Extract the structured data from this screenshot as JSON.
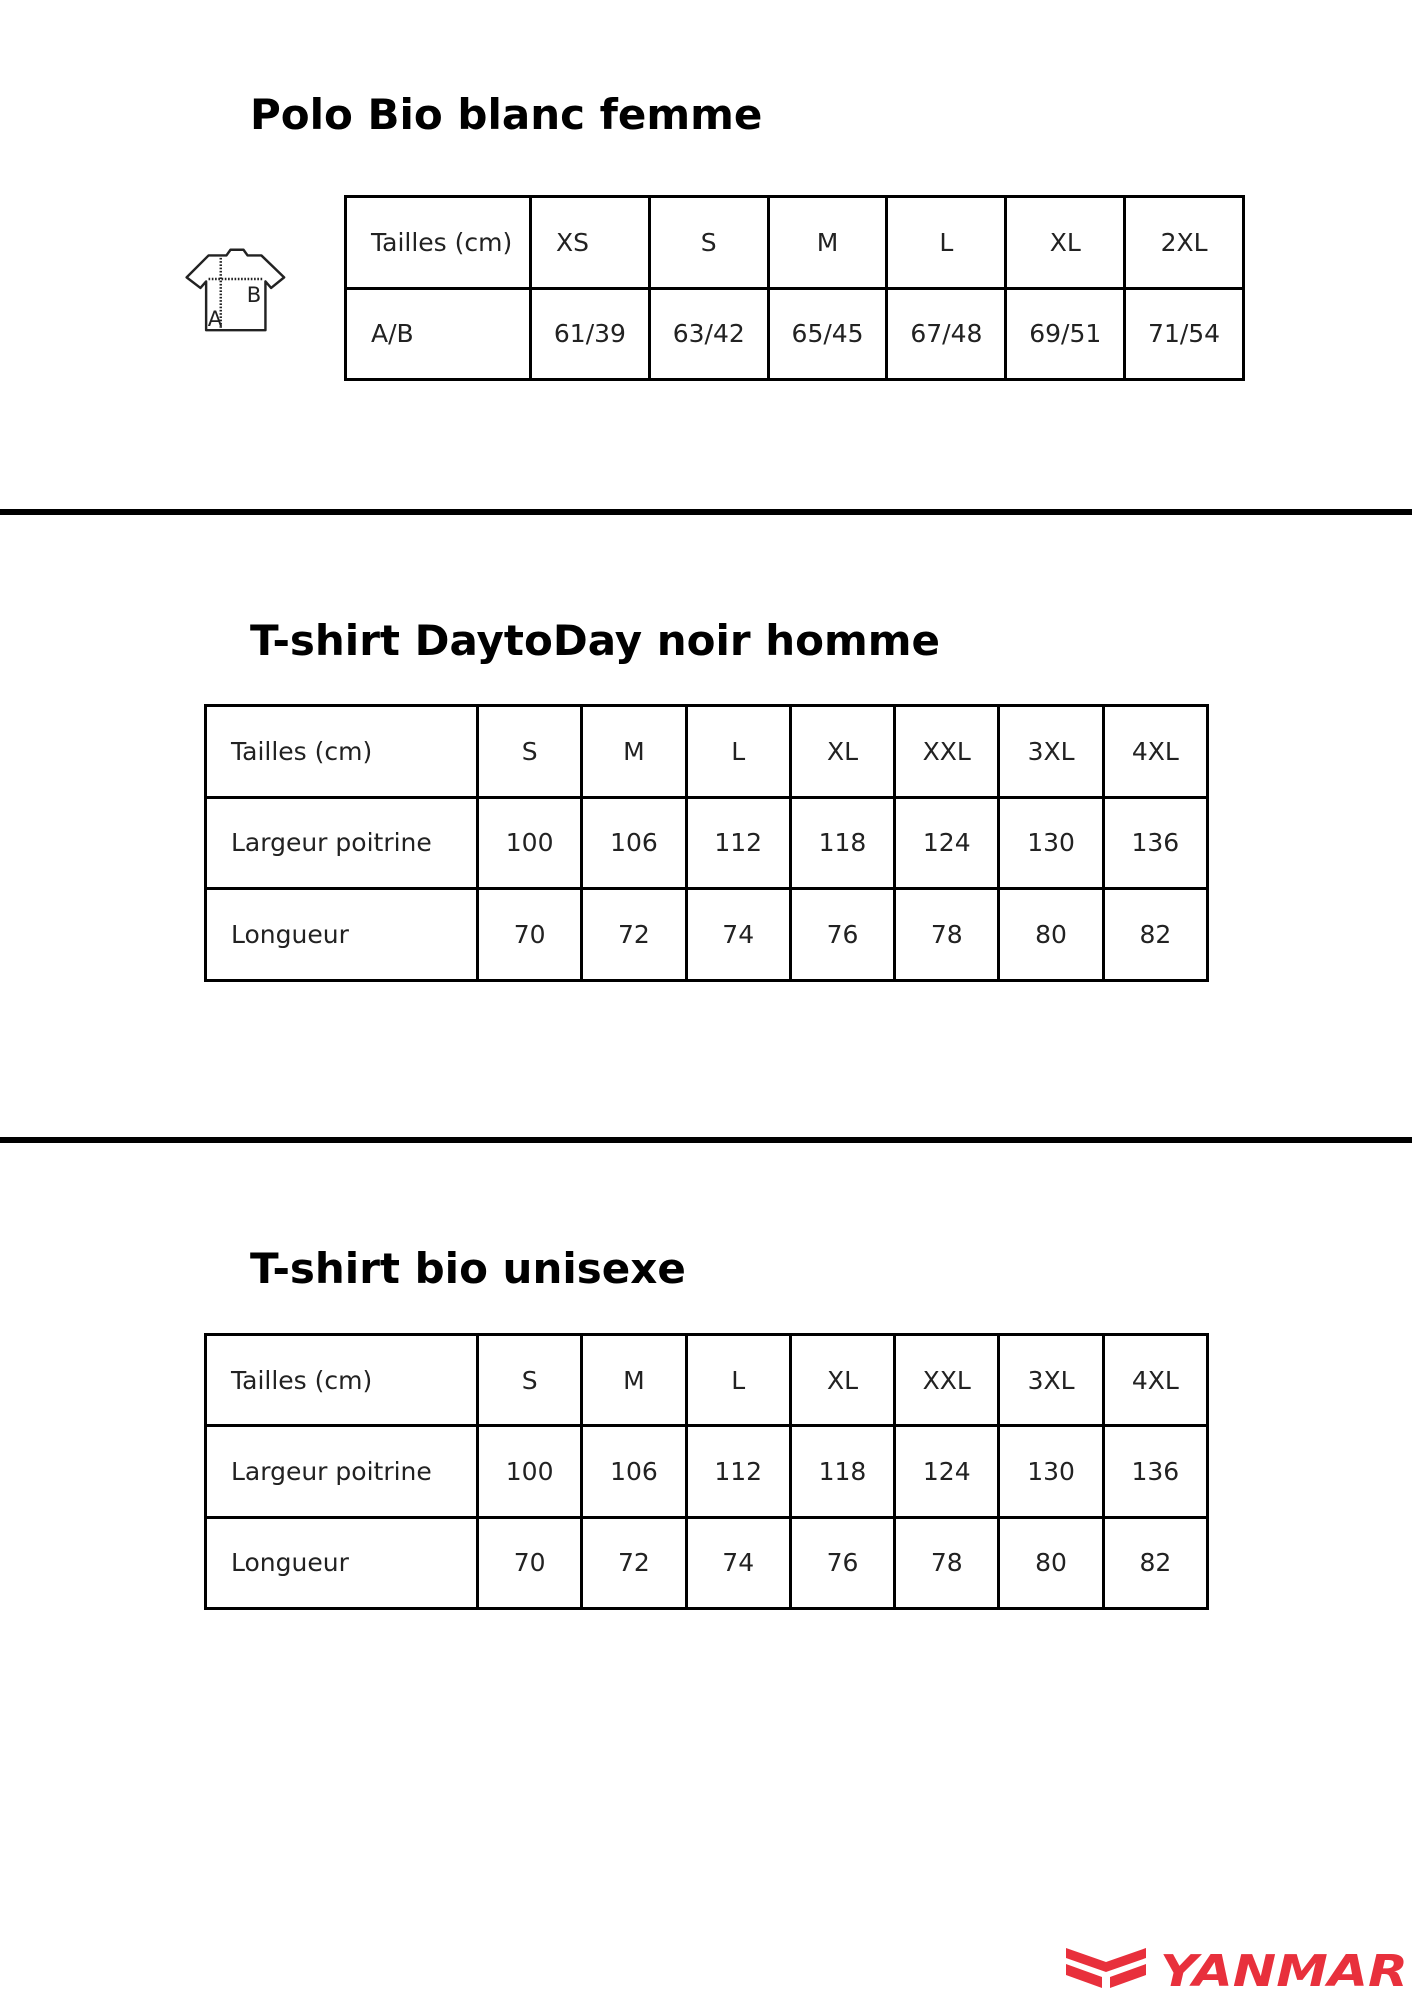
{
  "sections": [
    {
      "title": "Polo Bio blanc femme",
      "icon": "tshirt-measure-icon",
      "icon_labels": [
        "A",
        "B"
      ],
      "header": [
        "Tailles (cm)",
        "XS",
        "S",
        "M",
        "L",
        "XL",
        "2XL"
      ],
      "rows": [
        [
          "A/B",
          "61/39",
          "63/42",
          "65/45",
          "67/48",
          "69/51",
          "71/54"
        ]
      ]
    },
    {
      "title": "T-shirt DaytoDay noir homme",
      "header": [
        "Tailles (cm)",
        "S",
        "M",
        "L",
        "XL",
        "XXL",
        "3XL",
        "4XL"
      ],
      "rows": [
        [
          "Largeur poitrine",
          "100",
          "106",
          "112",
          "118",
          "124",
          "130",
          "136"
        ],
        [
          "Longueur",
          "70",
          "72",
          "74",
          "76",
          "78",
          "80",
          "82"
        ]
      ]
    },
    {
      "title": "T-shirt bio unisexe",
      "header": [
        "Tailles (cm)",
        "S",
        "M",
        "L",
        "XL",
        "XXL",
        "3XL",
        "4XL"
      ],
      "rows": [
        [
          "Largeur poitrine",
          "100",
          "106",
          "112",
          "118",
          "124",
          "130",
          "136"
        ],
        [
          "Longueur",
          "70",
          "72",
          "74",
          "76",
          "78",
          "80",
          "82"
        ]
      ]
    }
  ],
  "logo": {
    "text": "YANMAR",
    "color": "#e8303c"
  }
}
